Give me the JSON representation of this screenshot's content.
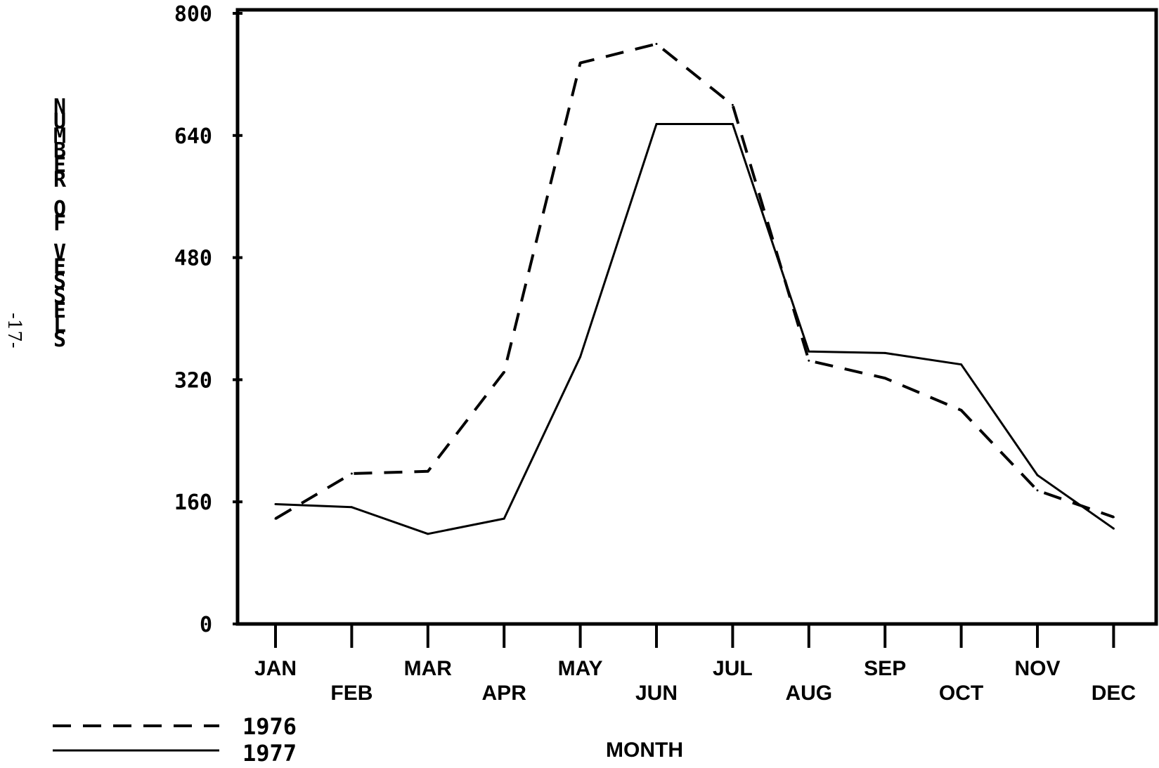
{
  "page_number": "-17-",
  "chart_data": {
    "type": "line",
    "title": "",
    "xlabel": "MONTH",
    "ylabel": "NUMBER OF VESSELS",
    "categories": [
      "JAN",
      "FEB",
      "MAR",
      "APR",
      "MAY",
      "JUN",
      "JUL",
      "AUG",
      "SEP",
      "OCT",
      "NOV",
      "DEC"
    ],
    "ylim": [
      0,
      800
    ],
    "yticks": [
      0,
      160,
      320,
      480,
      640,
      800
    ],
    "ytick_labels": [
      "0",
      "160",
      "320",
      "480",
      "640",
      "800"
    ],
    "grid": false,
    "legend_position": "bottom-left",
    "series": [
      {
        "name": "1976",
        "line_style": "dashed",
        "color": "#000000",
        "values": [
          138,
          197,
          200,
          330,
          735,
          760,
          680,
          345,
          322,
          280,
          175,
          140
        ]
      },
      {
        "name": "1977",
        "line_style": "solid",
        "color": "#000000",
        "values": [
          157,
          153,
          118,
          138,
          350,
          655,
          655,
          357,
          355,
          340,
          195,
          125
        ]
      }
    ]
  }
}
